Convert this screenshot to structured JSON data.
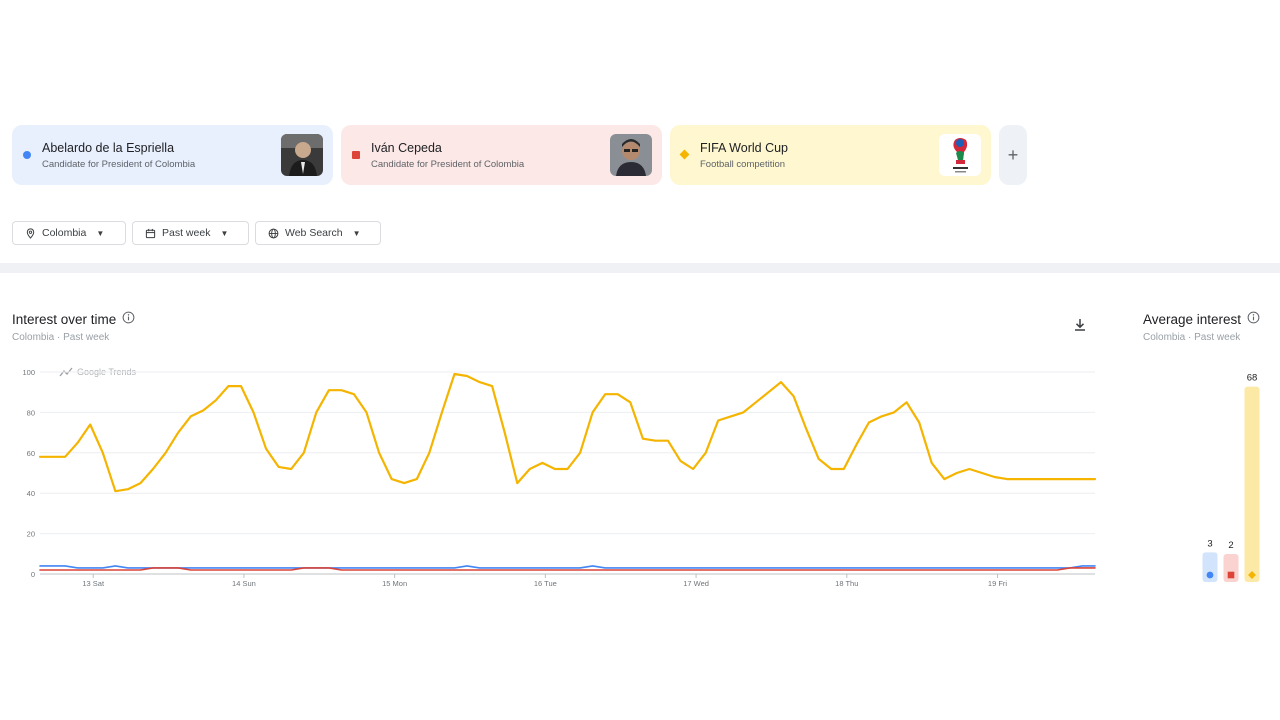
{
  "terms": [
    {
      "name": "Abelardo de la Espriella",
      "subtitle": "Candidate for President of Colombia",
      "color": "#4285f4",
      "marker": "circle",
      "image_icon": "person-photo-icon"
    },
    {
      "name": "Iván Cepeda",
      "subtitle": "Candidate for President of Colombia",
      "color": "#db4437",
      "marker": "square",
      "image_icon": "person-photo-icon"
    },
    {
      "name": "FIFA World Cup",
      "subtitle": "Football competition",
      "color": "#f4b400",
      "marker": "diamond",
      "image_icon": "trophy-logo-icon"
    }
  ],
  "add_term_label": "+",
  "filters": [
    {
      "label": "Colombia",
      "icon": "location-pin-icon"
    },
    {
      "label": "Past week",
      "icon": "calendar-icon"
    },
    {
      "label": "Web Search",
      "icon": "globe-icon"
    }
  ],
  "interest_over_time": {
    "title": "Interest over time",
    "subtitle": "Colombia · Past week",
    "watermark": "Google Trends"
  },
  "average_interest": {
    "title": "Average interest",
    "subtitle": "Colombia · Past week",
    "values": [
      3,
      2,
      68
    ]
  },
  "chart_data": {
    "type": "line",
    "ylim": [
      0,
      100
    ],
    "yticks": [
      0,
      20,
      40,
      60,
      80,
      100
    ],
    "grid": true,
    "x_tick_labels": [
      "13 Sat",
      "14 Sun",
      "15 Mon",
      "16 Tue",
      "17 Wed",
      "18 Thu",
      "19 Fri"
    ],
    "x": [
      0,
      0.25,
      0.5,
      0.75,
      1,
      1.25,
      1.5,
      1.75,
      2,
      2.25,
      2.5,
      2.75,
      3,
      3.25,
      3.5,
      3.75,
      4,
      4.25,
      4.5,
      4.75,
      5,
      5.25,
      5.5,
      5.75,
      6,
      6.25,
      6.5,
      6.75,
      7,
      7.25,
      7.5,
      7.75,
      8,
      8.25,
      8.5,
      8.75,
      9,
      9.25,
      9.5,
      9.75,
      10,
      10.25,
      10.5,
      10.75,
      11,
      11.25,
      11.5,
      11.75,
      12,
      12.25,
      12.5,
      12.75,
      13,
      13.25,
      13.5,
      13.75,
      14,
      14.25,
      14.5,
      14.75,
      15,
      15.25,
      15.5,
      15.75,
      16,
      16.25,
      16.5,
      16.75,
      17,
      17.25,
      17.5,
      17.75,
      18,
      18.25,
      18.5,
      18.75,
      19,
      19.25,
      19.5,
      19.75,
      20,
      20.25,
      20.5,
      20.75,
      21
    ],
    "series": [
      {
        "name": "Abelardo de la Espriella",
        "color": "#4285f4",
        "values": [
          4,
          4,
          4,
          3,
          3,
          3,
          4,
          3,
          3,
          3,
          3,
          3,
          3,
          3,
          3,
          3,
          3,
          3,
          3,
          3,
          3,
          3,
          3,
          3,
          3,
          3,
          3,
          3,
          3,
          3,
          3,
          3,
          3,
          3,
          4,
          3,
          3,
          3,
          3,
          3,
          3,
          3,
          3,
          3,
          4,
          3,
          3,
          3,
          3,
          3,
          3,
          3,
          3,
          3,
          3,
          3,
          3,
          3,
          3,
          3,
          3,
          3,
          3,
          3,
          3,
          3,
          3,
          3,
          3,
          3,
          3,
          3,
          3,
          3,
          3,
          3,
          3,
          3,
          3,
          3,
          3,
          3,
          3,
          4,
          4
        ]
      },
      {
        "name": "Iván Cepeda",
        "color": "#db4437",
        "values": [
          2,
          2,
          2,
          2,
          2,
          2,
          2,
          2,
          2,
          3,
          3,
          3,
          2,
          2,
          2,
          2,
          2,
          2,
          2,
          2,
          2,
          3,
          3,
          3,
          2,
          2,
          2,
          2,
          2,
          2,
          2,
          2,
          2,
          2,
          2,
          2,
          2,
          2,
          2,
          2,
          2,
          2,
          2,
          2,
          2,
          2,
          2,
          2,
          2,
          2,
          2,
          2,
          2,
          2,
          2,
          2,
          2,
          2,
          2,
          2,
          2,
          2,
          2,
          2,
          2,
          2,
          2,
          2,
          2,
          2,
          2,
          2,
          2,
          2,
          2,
          2,
          2,
          2,
          2,
          2,
          2,
          2,
          3,
          3,
          3
        ]
      },
      {
        "name": "FIFA World Cup",
        "color": "#f4b400",
        "values": [
          58,
          58,
          58,
          65,
          74,
          60,
          41,
          42,
          45,
          52,
          60,
          70,
          78,
          81,
          86,
          93,
          93,
          80,
          62,
          53,
          52,
          60,
          80,
          91,
          91,
          89,
          80,
          60,
          47,
          45,
          47,
          60,
          80,
          99,
          98,
          95,
          93,
          70,
          45,
          52,
          55,
          52,
          52,
          60,
          80,
          89,
          89,
          85,
          67,
          66,
          66,
          56,
          52,
          60,
          76,
          78,
          80,
          85,
          90,
          95,
          88,
          72,
          57,
          52,
          52,
          64,
          75,
          78,
          80,
          85,
          75,
          55,
          47,
          50,
          52,
          50,
          48,
          47,
          47,
          47,
          47,
          47,
          47,
          47,
          47
        ]
      }
    ]
  }
}
